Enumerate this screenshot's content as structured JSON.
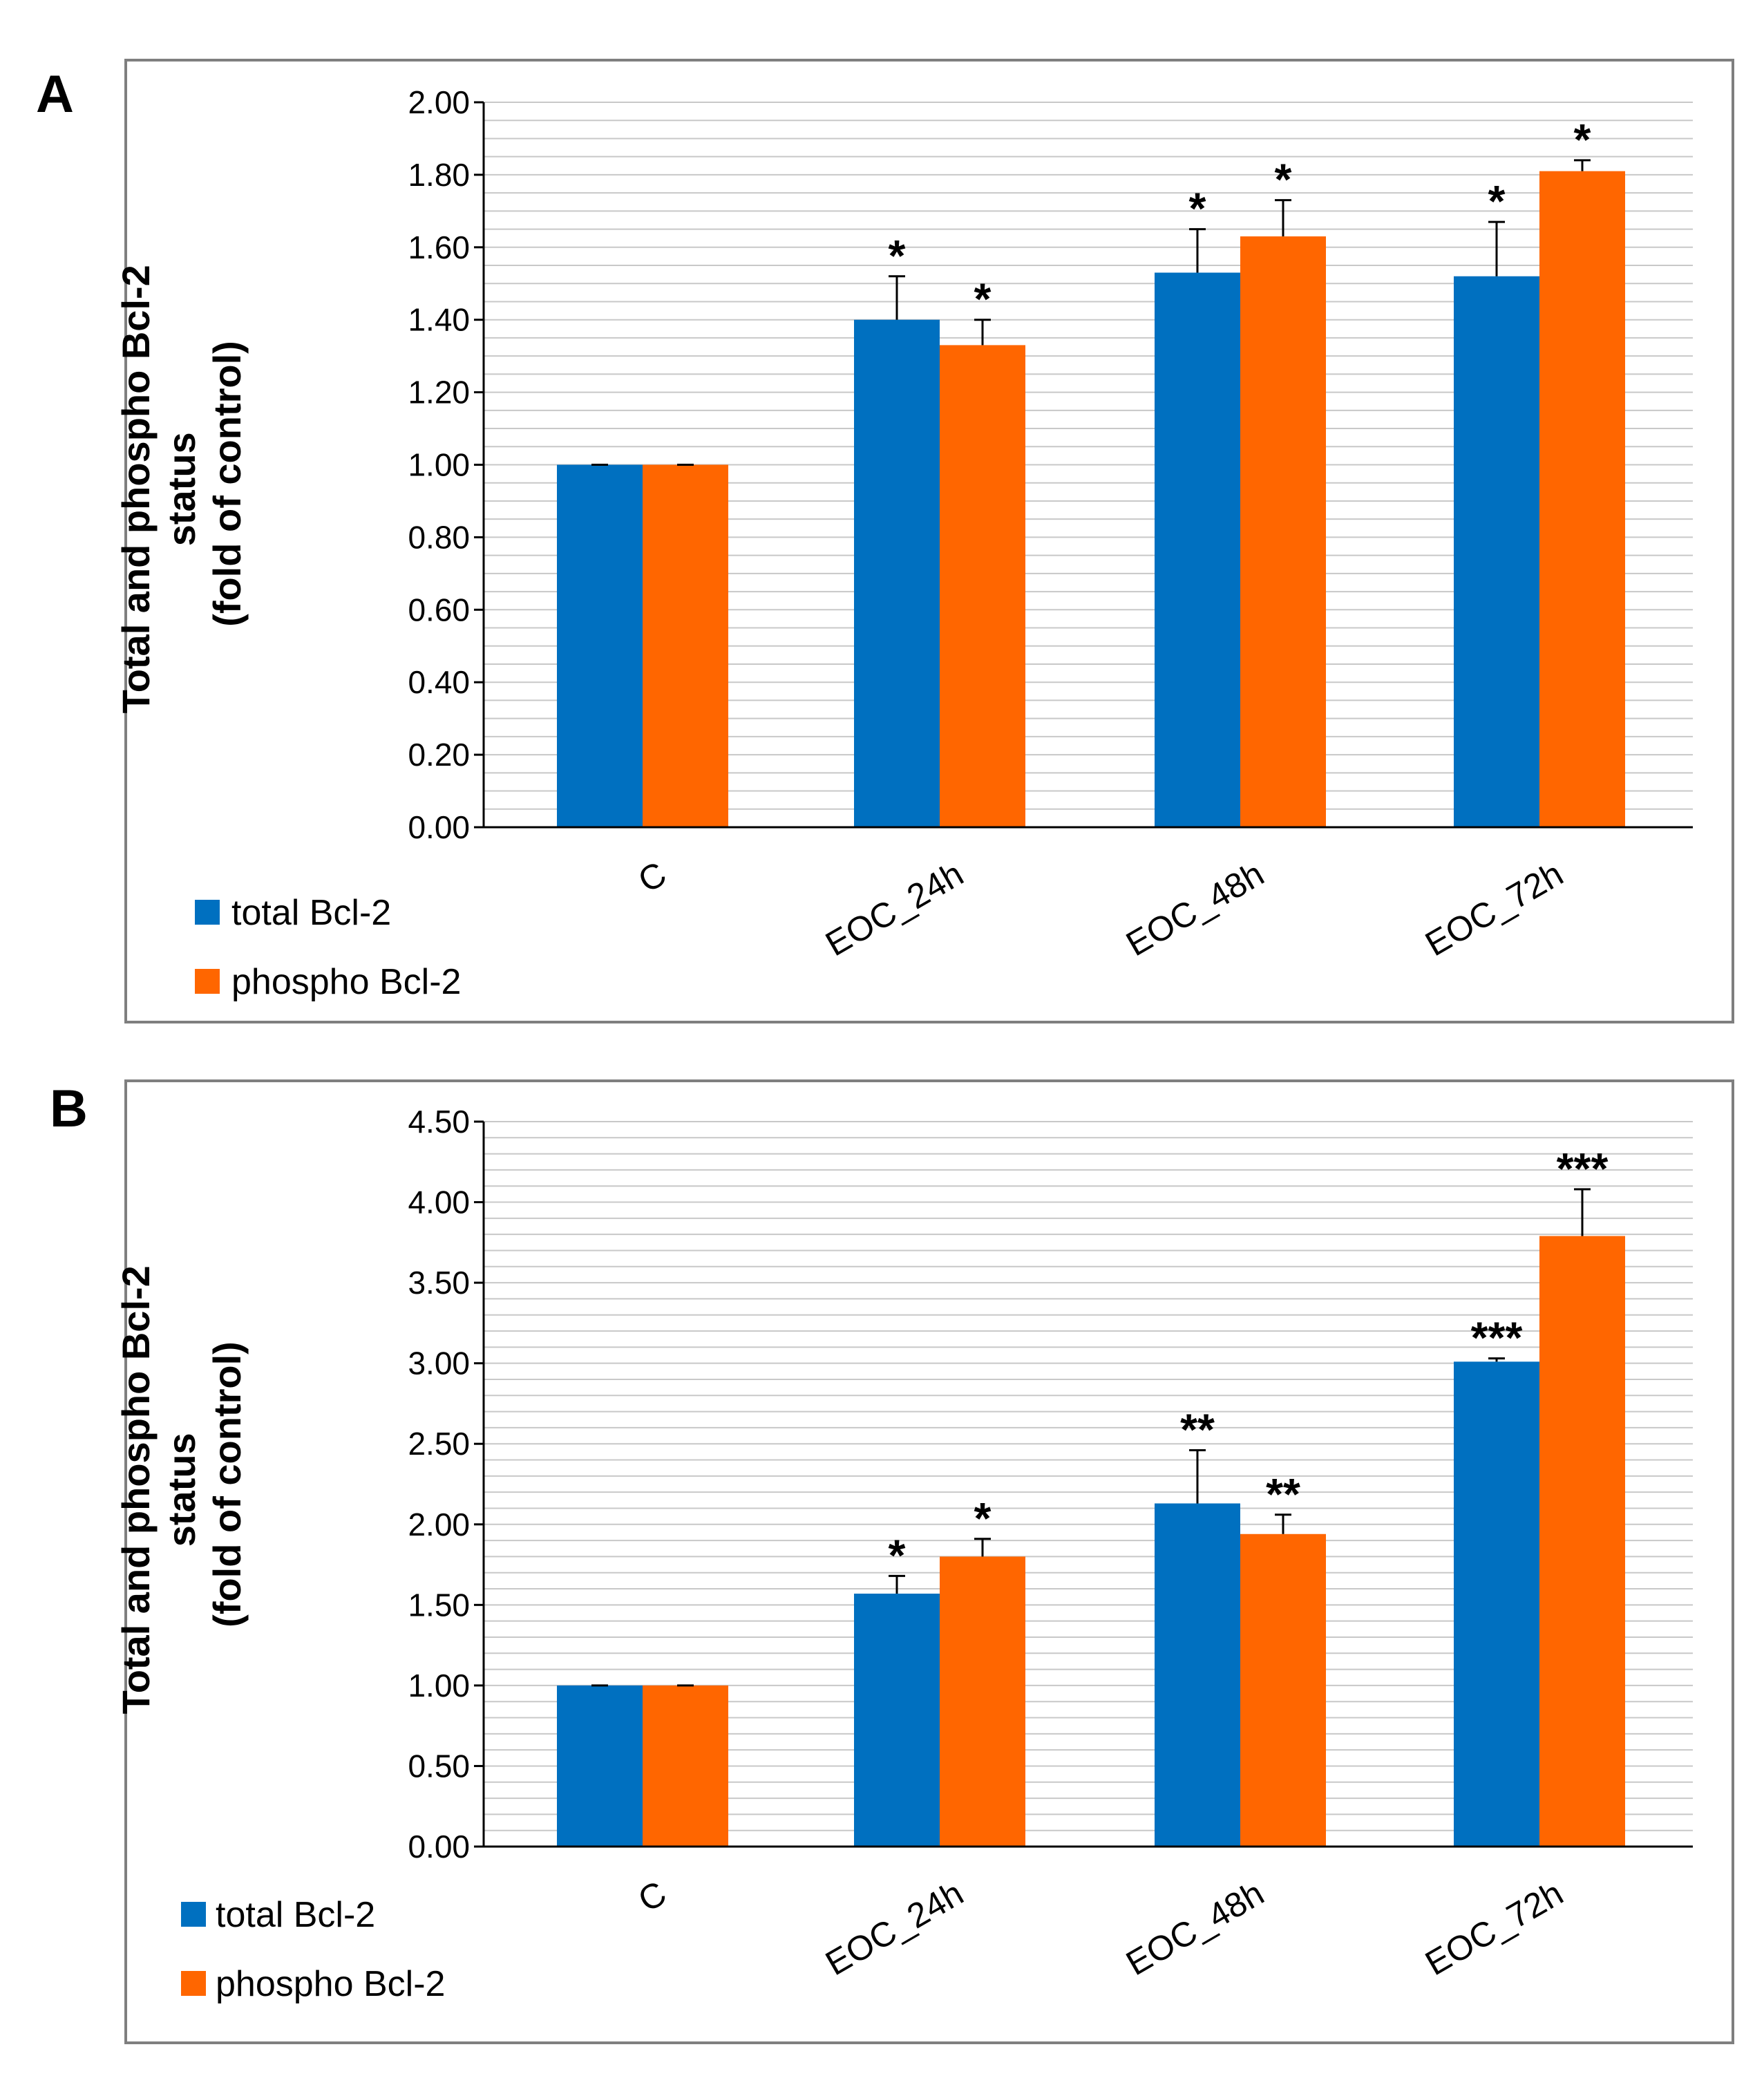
{
  "colors": {
    "total": "#0070c0",
    "phospho": "#ff6600",
    "grid": "#c8c8c8",
    "frame": "#7f7f7f"
  },
  "chart_data": [
    {
      "panel": "A",
      "type": "bar",
      "ylabel_lines": [
        "Total and phospho Bcl-2",
        "status",
        "(fold of control)"
      ],
      "categories": [
        "C",
        "EOC_24h",
        "EOC_48h",
        "EOC_72h"
      ],
      "ylim": [
        0,
        2.0
      ],
      "ytick_labels": [
        "0.00",
        "0.20",
        "0.40",
        "0.60",
        "0.80",
        "1.00",
        "1.20",
        "1.40",
        "1.60",
        "1.80",
        "2.00"
      ],
      "minor_step": 0.05,
      "legend": [
        "total Bcl-2",
        "phospho Bcl-2"
      ],
      "series": [
        {
          "name": "total Bcl-2",
          "values": [
            1.0,
            1.4,
            1.53,
            1.52
          ],
          "errors": [
            0.0,
            0.12,
            0.12,
            0.15
          ],
          "sig": [
            "",
            "*",
            "*",
            "*"
          ]
        },
        {
          "name": "phospho Bcl-2",
          "values": [
            1.0,
            1.33,
            1.63,
            1.81
          ],
          "errors": [
            0.0,
            0.07,
            0.1,
            0.03
          ],
          "sig": [
            "",
            "*",
            "*",
            "*"
          ]
        }
      ]
    },
    {
      "panel": "B",
      "type": "bar",
      "ylabel_lines": [
        "Total and phospho Bcl-2",
        "status",
        "(fold of control)"
      ],
      "categories": [
        "C",
        "EOC_24h",
        "EOC_48h",
        "EOC_72h"
      ],
      "ylim": [
        0,
        4.5
      ],
      "ytick_labels": [
        "0.00",
        "0.50",
        "1.00",
        "1.50",
        "2.00",
        "2.50",
        "3.00",
        "3.50",
        "4.00",
        "4.50"
      ],
      "minor_step": 0.1,
      "legend": [
        "total Bcl-2",
        "phospho Bcl-2"
      ],
      "series": [
        {
          "name": "total Bcl-2",
          "values": [
            1.0,
            1.57,
            2.13,
            3.01
          ],
          "errors": [
            0.0,
            0.11,
            0.33,
            0.02
          ],
          "sig": [
            "",
            "*",
            "**",
            "***"
          ]
        },
        {
          "name": "phospho Bcl-2",
          "values": [
            1.0,
            1.8,
            1.94,
            3.79
          ],
          "errors": [
            0.0,
            0.11,
            0.12,
            0.29
          ],
          "sig": [
            "",
            "*",
            "**",
            "***"
          ]
        }
      ]
    }
  ]
}
